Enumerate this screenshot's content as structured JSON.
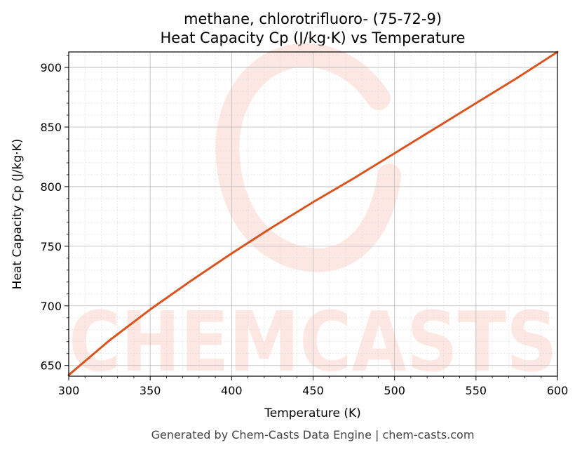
{
  "chart_data": {
    "type": "line",
    "title": "methane, chlorotrifluoro- (75-72-9)",
    "subtitle": "Heat Capacity Cp (J/kg·K) vs Temperature",
    "xlabel": "Temperature (K)",
    "ylabel": "Heat Capacity Cp (J/kg·K)",
    "xlim": [
      300,
      600
    ],
    "ylim": [
      641,
      913
    ],
    "xticks": [
      300,
      350,
      400,
      450,
      500,
      550,
      600
    ],
    "yticks": [
      650,
      700,
      750,
      800,
      850,
      900
    ],
    "grid": true,
    "series": [
      {
        "color": "#d9541e",
        "x": [
          300,
          325,
          350,
          375,
          400,
          425,
          450,
          475,
          500,
          525,
          550,
          575,
          600
        ],
        "y": [
          642,
          671,
          697,
          721,
          744,
          766,
          787,
          807,
          828,
          849,
          870,
          891,
          913
        ]
      }
    ]
  },
  "watermark": {
    "text": "CHEMCASTS",
    "color": "#fcd4cc"
  },
  "footer": "Generated by Chem-Casts Data Engine | chem-casts.com"
}
